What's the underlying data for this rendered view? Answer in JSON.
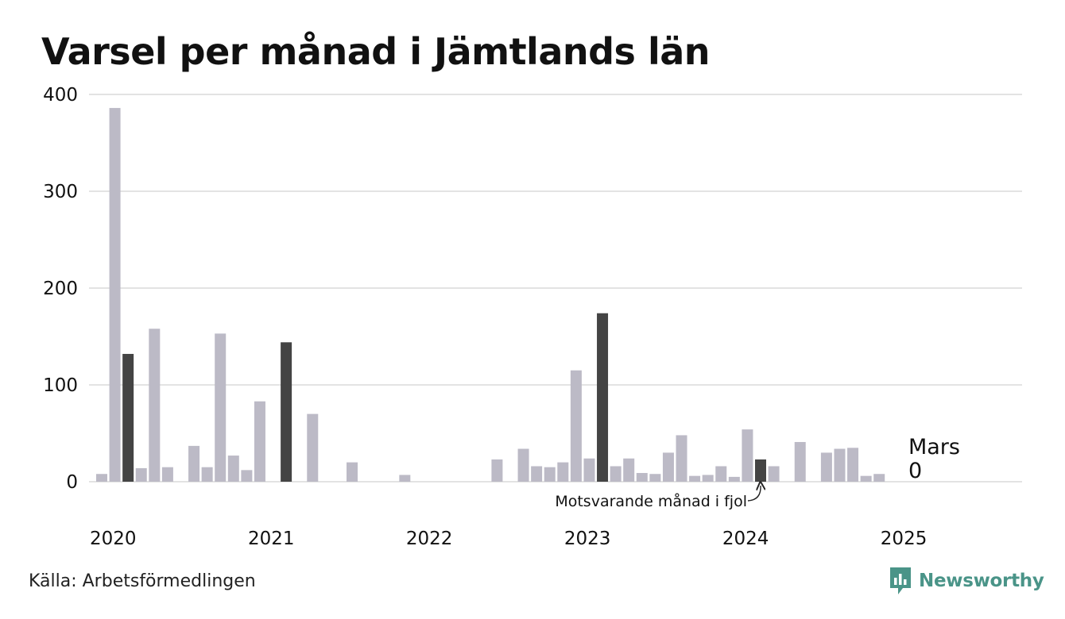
{
  "title": "Varsel per månad i Jämtlands län",
  "source": "Källa: Arbetsförmedlingen",
  "brand": {
    "name": "Newsworthy",
    "color": "#4a9488"
  },
  "colors": {
    "bar": "#bcbac6",
    "highlight": "#444444",
    "grid": "#e3e3e3",
    "text": "#111111"
  },
  "chart_data": {
    "type": "bar",
    "y_ticks": [
      0,
      100,
      200,
      300,
      400
    ],
    "ylim": [
      0,
      400
    ],
    "x_tick_labels": [
      "2020",
      "2021",
      "2022",
      "2023",
      "2024",
      "2025"
    ],
    "grid": true,
    "months": [
      "2020-01",
      "2020-02",
      "2020-03",
      "2020-04",
      "2020-05",
      "2020-06",
      "2020-07",
      "2020-08",
      "2020-09",
      "2020-10",
      "2020-11",
      "2020-12",
      "2021-01",
      "2021-02",
      "2021-03",
      "2021-04",
      "2021-05",
      "2021-06",
      "2021-07",
      "2021-08",
      "2021-09",
      "2021-10",
      "2021-11",
      "2021-12",
      "2022-01",
      "2022-02",
      "2022-03",
      "2022-04",
      "2022-05",
      "2022-06",
      "2022-07",
      "2022-08",
      "2022-09",
      "2022-10",
      "2022-11",
      "2022-12",
      "2023-01",
      "2023-02",
      "2023-03",
      "2023-04",
      "2023-05",
      "2023-06",
      "2023-07",
      "2023-08",
      "2023-09",
      "2023-10",
      "2023-11",
      "2023-12",
      "2024-01",
      "2024-02",
      "2024-03",
      "2024-04",
      "2024-05",
      "2024-06",
      "2024-07",
      "2024-08",
      "2024-09",
      "2024-10",
      "2024-11",
      "2024-12",
      "2025-01",
      "2025-02",
      "2025-03"
    ],
    "values": [
      8,
      386,
      132,
      14,
      158,
      15,
      0,
      37,
      15,
      153,
      27,
      12,
      83,
      0,
      144,
      0,
      70,
      0,
      0,
      20,
      0,
      0,
      0,
      7,
      0,
      0,
      0,
      0,
      0,
      0,
      23,
      0,
      34,
      16,
      15,
      20,
      115,
      24,
      174,
      16,
      24,
      9,
      8,
      30,
      48,
      6,
      7,
      16,
      5,
      54,
      23,
      16,
      0,
      41,
      0,
      30,
      34,
      35,
      6,
      8,
      0,
      0,
      0
    ],
    "highlighted": [
      "2020-03",
      "2021-03",
      "2022-03",
      "2023-03",
      "2024-03",
      "2025-03"
    ],
    "annotations": {
      "previous_year": {
        "month": "2024-03",
        "text": "Motsvarande månad i fjol"
      },
      "current": {
        "month": "2025-03",
        "label": "Mars",
        "value": "0"
      }
    }
  }
}
